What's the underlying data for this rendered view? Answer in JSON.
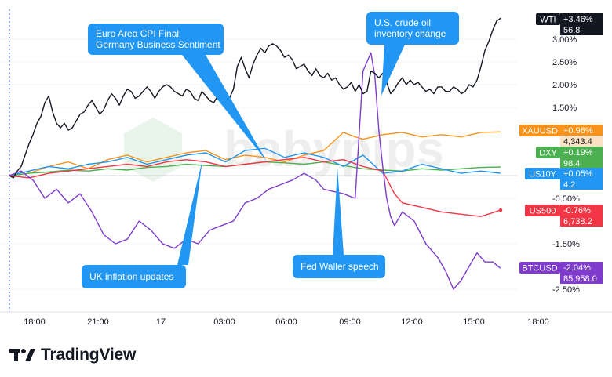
{
  "brand": {
    "name": "TradingView"
  },
  "chart_data": {
    "type": "line",
    "x_ticks": [
      "18:00",
      "21:00",
      "17",
      "03:00",
      "06:00",
      "09:00",
      "12:00",
      "15:00",
      "18:00"
    ],
    "y_ticks": [
      "3.00%",
      "2.50%",
      "2.00%",
      "1.50%",
      "-0.50%",
      "-1.50%",
      "-2.50%"
    ],
    "ylim": [
      -2.9,
      3.6
    ],
    "series": [
      {
        "name": "WTI",
        "color": "#131722",
        "change": "+3.46%",
        "price": "56.8",
        "x": [
          0,
          1,
          2,
          3,
          4,
          5,
          6,
          7,
          8,
          9,
          10,
          11,
          12,
          13,
          14,
          15,
          16,
          17,
          18,
          19,
          20,
          21,
          22,
          23,
          24,
          25,
          26,
          27,
          28,
          29,
          30,
          31,
          32,
          33,
          34,
          35,
          36,
          37,
          38,
          39,
          40,
          41,
          42,
          43,
          44,
          45,
          46,
          47,
          48,
          49,
          50,
          51,
          52,
          53,
          54,
          55,
          56,
          57,
          58,
          59,
          60,
          61,
          62,
          63,
          64,
          65,
          66,
          67,
          68,
          69,
          70,
          71,
          72,
          73,
          74,
          75,
          76,
          77,
          78,
          79,
          80,
          81,
          82,
          83,
          84,
          85,
          86,
          87,
          88,
          89,
          90,
          91,
          92,
          93,
          94,
          95,
          96,
          97,
          98,
          99,
          100,
          101,
          102,
          103,
          104,
          105,
          106,
          107,
          108,
          109,
          110,
          111,
          112,
          113,
          114,
          115,
          116,
          117,
          118,
          119,
          120,
          121,
          122,
          123,
          124,
          125
        ],
        "values": [
          0.0,
          -0.05,
          0.1,
          0.2,
          0.45,
          0.7,
          0.9,
          1.15,
          1.3,
          1.6,
          1.75,
          1.4,
          1.15,
          1.05,
          1.15,
          1.0,
          1.05,
          1.2,
          1.35,
          1.4,
          1.55,
          1.65,
          1.5,
          1.35,
          1.45,
          1.65,
          1.8,
          1.7,
          1.55,
          1.75,
          1.9,
          1.85,
          1.7,
          1.75,
          1.85,
          1.95,
          1.85,
          1.7,
          1.85,
          1.95,
          2.0,
          1.95,
          1.85,
          1.8,
          1.75,
          1.9,
          1.85,
          1.7,
          1.65,
          1.85,
          1.75,
          1.65,
          1.6,
          1.75,
          1.7,
          1.6,
          1.7,
          1.9,
          2.4,
          2.6,
          2.35,
          2.15,
          2.45,
          2.65,
          2.8,
          2.7,
          2.85,
          2.9,
          2.85,
          2.75,
          2.6,
          2.65,
          2.55,
          2.35,
          2.4,
          2.45,
          2.3,
          2.2,
          2.35,
          2.2,
          2.15,
          2.25,
          2.1,
          2.15,
          2.0,
          1.9,
          1.95,
          2.05,
          1.85,
          2.0,
          1.8,
          1.85,
          2.3,
          2.25,
          2.15,
          2.25,
          2.05,
          1.8,
          1.9,
          2.05,
          2.15,
          2.0,
          2.1,
          2.0,
          2.05,
          1.95,
          1.85,
          1.9,
          1.8,
          1.95,
          1.95,
          1.85,
          1.85,
          1.95,
          1.9,
          1.8,
          1.85,
          2.0,
          1.95,
          2.1,
          2.4,
          2.75,
          2.95,
          3.2,
          3.4,
          3.46
        ]
      },
      {
        "name": "XAUUSD",
        "color": "#f7931a",
        "change": "+0.96%",
        "price": "4,343.4",
        "x": [
          0,
          5,
          10,
          15,
          20,
          25,
          30,
          35,
          40,
          45,
          50,
          55,
          60,
          65,
          70,
          75,
          80,
          85,
          88,
          90,
          95,
          100,
          105,
          110,
          115,
          120,
          125
        ],
        "values": [
          0.0,
          0.05,
          0.2,
          0.3,
          0.15,
          0.35,
          0.45,
          0.3,
          0.4,
          0.5,
          0.55,
          0.35,
          0.45,
          0.4,
          0.3,
          0.45,
          0.55,
          0.95,
          0.85,
          0.8,
          0.9,
          0.95,
          0.85,
          0.9,
          0.85,
          0.95,
          0.96
        ]
      },
      {
        "name": "DXY",
        "color": "#4caf50",
        "change": "+0.19%",
        "price": "98.4",
        "x": [
          0,
          5,
          10,
          15,
          20,
          25,
          30,
          35,
          40,
          45,
          50,
          55,
          60,
          65,
          70,
          75,
          80,
          85,
          90,
          95,
          100,
          105,
          110,
          115,
          120,
          125
        ],
        "values": [
          0.0,
          0.05,
          0.08,
          0.12,
          0.1,
          0.15,
          0.12,
          0.18,
          0.2,
          0.25,
          0.22,
          0.2,
          0.25,
          0.3,
          0.28,
          0.25,
          0.3,
          0.22,
          0.15,
          0.12,
          0.1,
          0.15,
          0.12,
          0.15,
          0.18,
          0.19
        ]
      },
      {
        "name": "US10Y",
        "color": "#2196f3",
        "change": "+0.05%",
        "price": "4.2",
        "x": [
          0,
          5,
          10,
          15,
          20,
          25,
          30,
          35,
          40,
          45,
          50,
          55,
          60,
          65,
          70,
          75,
          80,
          85,
          90,
          95,
          100,
          105,
          110,
          115,
          120,
          125
        ],
        "values": [
          0.0,
          0.1,
          0.2,
          0.15,
          0.25,
          0.3,
          0.4,
          0.25,
          0.35,
          0.45,
          0.5,
          0.3,
          0.55,
          0.6,
          0.4,
          0.5,
          0.4,
          0.2,
          0.45,
          0.05,
          0.1,
          0.25,
          0.15,
          0.05,
          0.1,
          0.05
        ]
      },
      {
        "name": "US500",
        "color": "#f23645",
        "change": "-0.76%",
        "price": "6,738.2",
        "x": [
          0,
          5,
          10,
          15,
          20,
          25,
          30,
          35,
          40,
          45,
          50,
          55,
          60,
          65,
          70,
          75,
          80,
          85,
          90,
          95,
          98,
          100,
          105,
          110,
          115,
          120,
          125
        ],
        "values": [
          0.0,
          -0.05,
          0.05,
          0.1,
          0.15,
          0.2,
          0.25,
          0.2,
          0.3,
          0.35,
          0.3,
          0.2,
          0.25,
          0.3,
          0.35,
          0.4,
          0.3,
          0.35,
          0.2,
          0.1,
          -0.4,
          -0.6,
          -0.7,
          -0.8,
          -0.85,
          -0.9,
          -0.76
        ]
      },
      {
        "name": "BTCUSD",
        "color": "#7e3bcc",
        "change": "-2.04%",
        "price": "85,958.0",
        "x": [
          0,
          3,
          6,
          9,
          12,
          15,
          18,
          21,
          24,
          27,
          30,
          33,
          36,
          39,
          42,
          45,
          48,
          51,
          54,
          57,
          60,
          63,
          66,
          69,
          72,
          75,
          78,
          80,
          85,
          88,
          90,
          92,
          93,
          94,
          95,
          96,
          97,
          98,
          100,
          103,
          106,
          109,
          111,
          113,
          115,
          117,
          119,
          121,
          123,
          125
        ],
        "values": [
          0.0,
          0.1,
          -0.1,
          -0.5,
          -0.3,
          -0.6,
          -0.4,
          -0.8,
          -1.3,
          -1.5,
          -1.4,
          -1.0,
          -1.2,
          -1.5,
          -1.6,
          -1.4,
          -1.5,
          -1.2,
          -1.1,
          -1.0,
          -0.6,
          -0.5,
          -0.3,
          -0.2,
          -0.1,
          0.05,
          -0.1,
          -0.3,
          -0.4,
          -0.5,
          2.3,
          2.7,
          2.2,
          1.0,
          0.2,
          -0.5,
          -0.9,
          -1.1,
          -0.8,
          -1.0,
          -1.5,
          -1.8,
          -2.1,
          -2.5,
          -2.3,
          -2.0,
          -1.7,
          -1.9,
          -1.9,
          -2.04
        ]
      }
    ],
    "annotations": [
      {
        "text": [
          "Euro Area CPI Final",
          "Germany Business Sentiment"
        ]
      },
      {
        "text": [
          "U.S. crude oil",
          "inventory change"
        ]
      },
      {
        "text": [
          "UK inflation updates"
        ]
      },
      {
        "text": [
          "Fed Waller speech"
        ]
      }
    ],
    "watermark": "babypips"
  }
}
